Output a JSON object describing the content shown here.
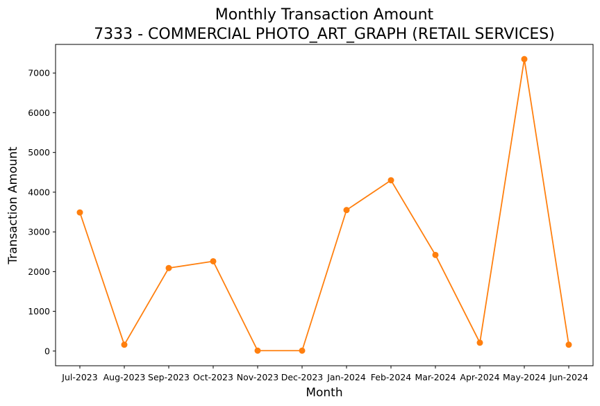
{
  "chart_data": {
    "type": "line",
    "title_line1": "Monthly Transaction Amount",
    "title_line2": "7333 - COMMERCIAL PHOTO_ART_GRAPH (RETAIL SERVICES)",
    "xlabel": "Month",
    "ylabel": "Transaction Amount",
    "categories": [
      "Jul-2023",
      "Aug-2023",
      "Sep-2023",
      "Oct-2023",
      "Nov-2023",
      "Dec-2023",
      "Jan-2024",
      "Feb-2024",
      "Mar-2024",
      "Apr-2024",
      "May-2024",
      "Jun-2024"
    ],
    "values": [
      3490,
      160,
      2090,
      2260,
      10,
      10,
      3550,
      4300,
      2420,
      210,
      7350,
      160
    ],
    "ylim": [
      -370,
      7720
    ],
    "yticks": [
      0,
      1000,
      2000,
      3000,
      4000,
      5000,
      6000,
      7000
    ],
    "line_color": "#ff7f0e",
    "marker": "circle",
    "grid": false,
    "legend": "none"
  }
}
